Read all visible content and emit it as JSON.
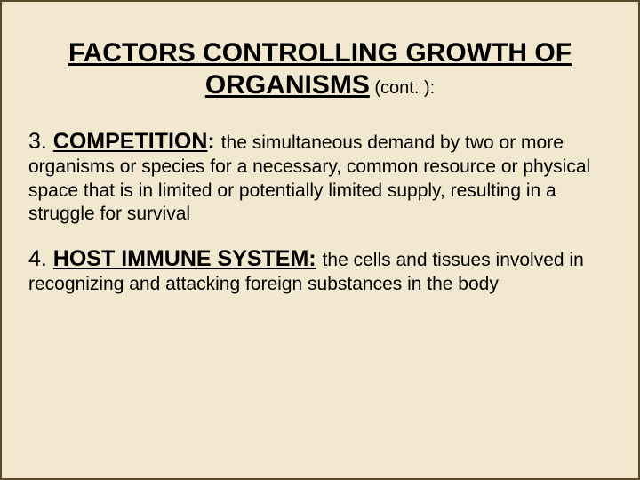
{
  "colors": {
    "background": "#f2e8cf",
    "border": "#5a4a2a",
    "text": "#000000"
  },
  "typography": {
    "font_family": "Arial, Helvetica, sans-serif",
    "title_fontsize": 30,
    "heading_fontsize": 25,
    "body_fontsize": 21
  },
  "title": {
    "main": "FACTORS CONTROLLING GROWTH OF ORGANISMS",
    "suffix": " (cont. ):"
  },
  "items": [
    {
      "number": "3.  ",
      "heading": "COMPETITION",
      "colon": ":  ",
      "body": "the simultaneous demand by two or more organisms or species for a necessary, common resource or physical space that is in limited or potentially limited supply, resulting in a struggle for survival"
    },
    {
      "number": "4.  ",
      "heading": "HOST IMMUNE SYSTEM:",
      "colon": " ",
      "body": "the cells and tissues involved in recognizing and attacking foreign substances in the body"
    }
  ]
}
